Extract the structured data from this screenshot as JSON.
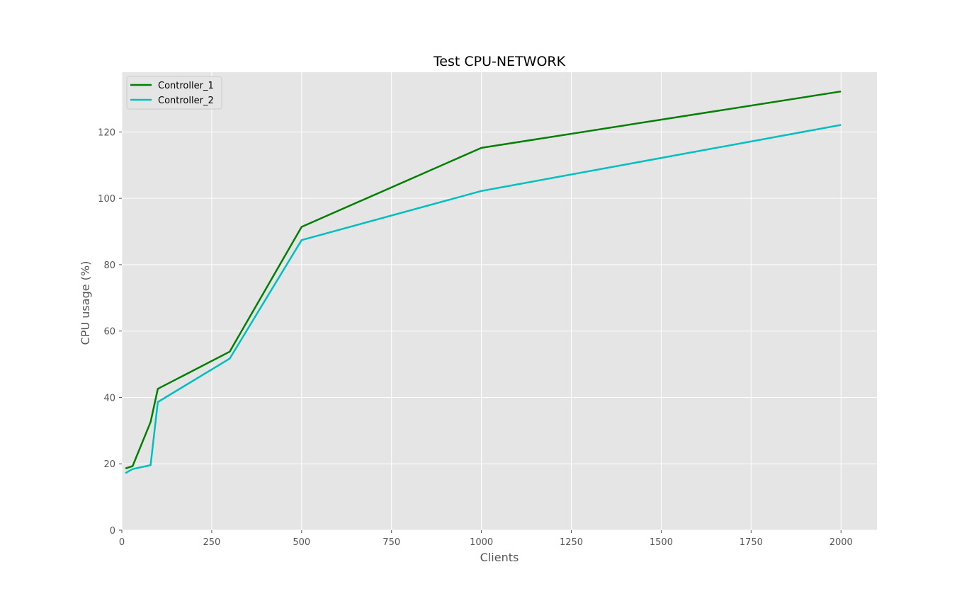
{
  "chart_data": {
    "type": "line",
    "title": "Test CPU-NETWORK",
    "xlabel": "Clients",
    "ylabel": "CPU usage (%)",
    "xlim": [
      0,
      2100
    ],
    "ylim": [
      0,
      138
    ],
    "xticks": [
      0,
      250,
      500,
      750,
      1000,
      1250,
      1500,
      1750,
      2000
    ],
    "yticks": [
      0,
      20,
      40,
      60,
      80,
      100,
      120
    ],
    "grid": true,
    "legend": "top-left",
    "background": "#e5e5e5",
    "series": [
      {
        "name": "Controller_1",
        "color": "#008000",
        "x": [
          10,
          30,
          80,
          100,
          300,
          500,
          1000,
          2000
        ],
        "y": [
          18.6,
          19.3,
          32.6,
          42.6,
          53.8,
          91.4,
          115.2,
          132.2
        ]
      },
      {
        "name": "Controller_2",
        "color": "#00bfbf",
        "x": [
          10,
          30,
          80,
          100,
          300,
          500,
          1000,
          2000
        ],
        "y": [
          17.2,
          18.4,
          19.6,
          38.6,
          51.7,
          87.4,
          102.2,
          122.1
        ]
      }
    ]
  }
}
